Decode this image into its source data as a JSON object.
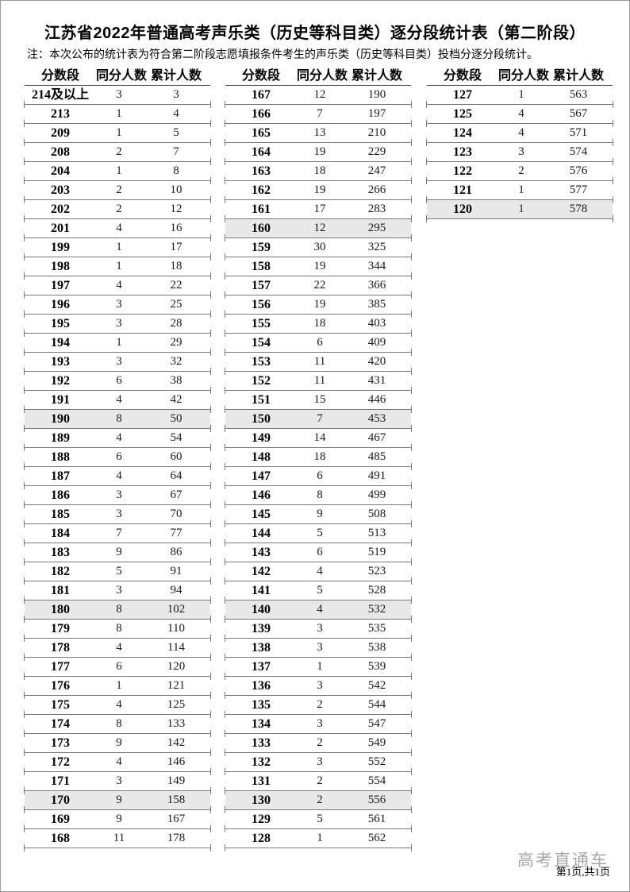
{
  "page": {
    "title": "江苏省2022年普通高考声乐类（历史等科目类）逐分段统计表（第二阶段）",
    "note": "注：本次公布的统计表为符合第二阶段志愿填报条件考生的声乐类（历史等科目类）投档分逐分段统计。",
    "watermark": "高考直通车",
    "page_indicator": "第1页,共1页"
  },
  "table_headers": [
    "分数段",
    "同分人数",
    "累计人数"
  ],
  "shaded_scores": [
    "190",
    "180",
    "170",
    "160",
    "150",
    "140",
    "130",
    "120"
  ],
  "colors": {
    "shaded_row": "#e8e8e8",
    "separator_line": "#7a7a7a",
    "watermark_gray": "#a8a8a8"
  },
  "tables": [
    {
      "rows": [
        [
          "214及以上",
          "3",
          "3"
        ],
        [
          "213",
          "1",
          "4"
        ],
        [
          "209",
          "1",
          "5"
        ],
        [
          "208",
          "2",
          "7"
        ],
        [
          "204",
          "1",
          "8"
        ],
        [
          "203",
          "2",
          "10"
        ],
        [
          "202",
          "2",
          "12"
        ],
        [
          "201",
          "4",
          "16"
        ],
        [
          "199",
          "1",
          "17"
        ],
        [
          "198",
          "1",
          "18"
        ],
        [
          "197",
          "4",
          "22"
        ],
        [
          "196",
          "3",
          "25"
        ],
        [
          "195",
          "3",
          "28"
        ],
        [
          "194",
          "1",
          "29"
        ],
        [
          "193",
          "3",
          "32"
        ],
        [
          "192",
          "6",
          "38"
        ],
        [
          "191",
          "4",
          "42"
        ],
        [
          "190",
          "8",
          "50"
        ],
        [
          "189",
          "4",
          "54"
        ],
        [
          "188",
          "6",
          "60"
        ],
        [
          "187",
          "4",
          "64"
        ],
        [
          "186",
          "3",
          "67"
        ],
        [
          "185",
          "3",
          "70"
        ],
        [
          "184",
          "7",
          "77"
        ],
        [
          "183",
          "9",
          "86"
        ],
        [
          "182",
          "5",
          "91"
        ],
        [
          "181",
          "3",
          "94"
        ],
        [
          "180",
          "8",
          "102"
        ],
        [
          "179",
          "8",
          "110"
        ],
        [
          "178",
          "4",
          "114"
        ],
        [
          "177",
          "6",
          "120"
        ],
        [
          "176",
          "1",
          "121"
        ],
        [
          "175",
          "4",
          "125"
        ],
        [
          "174",
          "8",
          "133"
        ],
        [
          "173",
          "9",
          "142"
        ],
        [
          "172",
          "4",
          "146"
        ],
        [
          "171",
          "3",
          "149"
        ],
        [
          "170",
          "9",
          "158"
        ],
        [
          "169",
          "9",
          "167"
        ],
        [
          "168",
          "11",
          "178"
        ]
      ]
    },
    {
      "rows": [
        [
          "167",
          "12",
          "190"
        ],
        [
          "166",
          "7",
          "197"
        ],
        [
          "165",
          "13",
          "210"
        ],
        [
          "164",
          "19",
          "229"
        ],
        [
          "163",
          "18",
          "247"
        ],
        [
          "162",
          "19",
          "266"
        ],
        [
          "161",
          "17",
          "283"
        ],
        [
          "160",
          "12",
          "295"
        ],
        [
          "159",
          "30",
          "325"
        ],
        [
          "158",
          "19",
          "344"
        ],
        [
          "157",
          "22",
          "366"
        ],
        [
          "156",
          "19",
          "385"
        ],
        [
          "155",
          "18",
          "403"
        ],
        [
          "154",
          "6",
          "409"
        ],
        [
          "153",
          "11",
          "420"
        ],
        [
          "152",
          "11",
          "431"
        ],
        [
          "151",
          "15",
          "446"
        ],
        [
          "150",
          "7",
          "453"
        ],
        [
          "149",
          "14",
          "467"
        ],
        [
          "148",
          "18",
          "485"
        ],
        [
          "147",
          "6",
          "491"
        ],
        [
          "146",
          "8",
          "499"
        ],
        [
          "145",
          "9",
          "508"
        ],
        [
          "144",
          "5",
          "513"
        ],
        [
          "143",
          "6",
          "519"
        ],
        [
          "142",
          "4",
          "523"
        ],
        [
          "141",
          "5",
          "528"
        ],
        [
          "140",
          "4",
          "532"
        ],
        [
          "139",
          "3",
          "535"
        ],
        [
          "138",
          "3",
          "538"
        ],
        [
          "137",
          "1",
          "539"
        ],
        [
          "136",
          "3",
          "542"
        ],
        [
          "135",
          "2",
          "544"
        ],
        [
          "134",
          "3",
          "547"
        ],
        [
          "133",
          "2",
          "549"
        ],
        [
          "132",
          "3",
          "552"
        ],
        [
          "131",
          "2",
          "554"
        ],
        [
          "130",
          "2",
          "556"
        ],
        [
          "129",
          "5",
          "561"
        ],
        [
          "128",
          "1",
          "562"
        ]
      ]
    },
    {
      "rows": [
        [
          "127",
          "1",
          "563"
        ],
        [
          "125",
          "4",
          "567"
        ],
        [
          "124",
          "4",
          "571"
        ],
        [
          "123",
          "3",
          "574"
        ],
        [
          "122",
          "2",
          "576"
        ],
        [
          "121",
          "1",
          "577"
        ],
        [
          "120",
          "1",
          "578"
        ]
      ]
    }
  ]
}
